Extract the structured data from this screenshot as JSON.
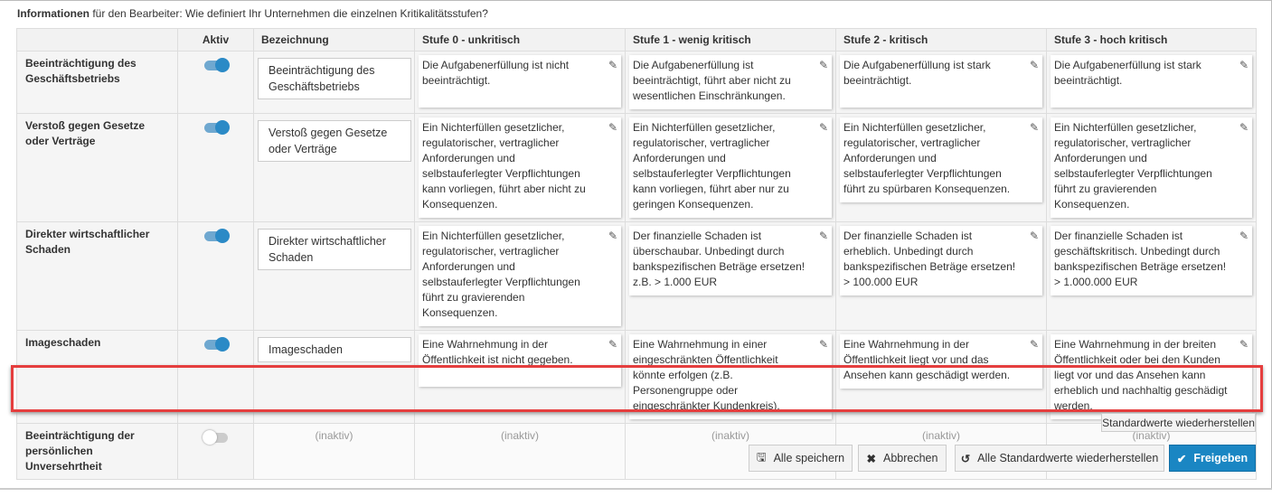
{
  "info": {
    "bold": "Informationen",
    "text": " für den Bearbeiter: Wie definiert Ihr Unternehmen die einzelnen Kritikalitätsstufen?"
  },
  "headers": [
    "",
    "Aktiv",
    "Bezeichnung",
    "Stufe 0 - unkritisch",
    "Stufe 1 - wenig kritisch",
    "Stufe 2 - kritisch",
    "Stufe 3 - hoch kritisch"
  ],
  "rows": [
    {
      "label": "Beeinträchtigung des Geschäftsbetriebs",
      "active": true,
      "name": "Beeinträchtigung des Geschäftsbetriebs",
      "levels": [
        "Die Aufgabenerfüllung ist nicht beeinträchtigt.",
        "Die Aufgabenerfüllung ist beeinträchtigt, führt aber nicht zu wesentlichen Einschränkungen.",
        "Die Aufgabenerfüllung ist stark beeinträchtigt.",
        "Die Aufgabenerfüllung ist stark beeinträchtigt."
      ]
    },
    {
      "label": "Verstoß gegen Gesetze oder Verträge",
      "active": true,
      "name": "Verstoß gegen Gesetze oder Verträge",
      "levels": [
        "Ein Nichterfüllen gesetzlicher, regulatorischer, vertraglicher Anforderungen und selbstauferlegter Verpflichtungen kann vorliegen, führt aber nicht zu Konsequenzen.",
        "Ein Nichterfüllen gesetzlicher, regulatorischer, vertraglicher Anforderungen und selbstauferlegter Verpflichtungen kann vorliegen, führt aber nur zu geringen Konsequenzen.",
        "Ein Nichterfüllen gesetzlicher, regulatorischer, vertraglicher Anforderungen und selbstauferlegter Verpflichtungen führt zu spürbaren Konsequenzen.",
        "Ein Nichterfüllen gesetzlicher, regulatorischer, vertraglicher Anforderungen und selbstauferlegter Verpflichtungen führt zu gravierenden Konsequenzen."
      ]
    },
    {
      "label": "Direkter wirtschaftlicher Schaden",
      "active": true,
      "name": "Direkter wirtschaftlicher Schaden",
      "levels": [
        "Ein Nichterfüllen gesetzlicher, regulatorischer, vertraglicher Anforderungen und selbstauferlegter Verpflichtungen führt zu gravierenden Konsequenzen.",
        "Der finanzielle Schaden ist überschaubar. Unbedingt durch bankspezifischen Beträge ersetzen! z.B. > 1.000 EUR",
        "Der finanzielle Schaden ist erheblich. Unbedingt durch bankspezifischen Beträge ersetzen! > 100.000 EUR",
        "Der finanzielle Schaden ist geschäftskritisch. Unbedingt durch bankspezifischen Beträge ersetzen! > 1.000.000 EUR"
      ]
    },
    {
      "label": "Imageschaden",
      "active": true,
      "name": "Imageschaden",
      "levels": [
        "Eine Wahrnehmung in der Öffentlichkeit ist nicht gegeben.",
        "Eine Wahrnehmung in einer eingeschränkten Öffentlichkeit könnte erfolgen (z.B. Personengruppe oder eingeschränkter Kundenkreis).",
        "Eine Wahrnehmung in der Öffentlichkeit liegt vor und das Ansehen kann geschädigt werden.",
        "Eine Wahrnehmung in der breiten Öffentlichkeit oder bei den Kunden liegt vor und das Ansehen kann erheblich und nachhaltig geschädigt werden."
      ]
    }
  ],
  "inactive_row": {
    "label": "Beeinträchtigung der persönlichen Unversehrtheit",
    "active": false,
    "placeholder": "(inaktiv)"
  },
  "buttons": {
    "reset_row": "Standardwerte wiederherstellen",
    "save_all": "Alle speichern",
    "cancel": "Abbrechen",
    "reset_all": "Alle Standardwerte wiederherstellen",
    "release": "Freigeben"
  },
  "colors": {
    "primary": "#1a86c3",
    "highlight": "#e53e3e",
    "toggle_on": "#2b8ac6"
  }
}
